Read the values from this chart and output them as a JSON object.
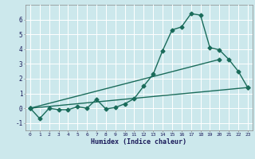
{
  "xlabel": "Humidex (Indice chaleur)",
  "ylabel": "",
  "bg_color": "#cce8ec",
  "grid_color": "#ffffff",
  "line_color": "#1a6b5a",
  "xlim": [
    -0.5,
    23.5
  ],
  "ylim": [
    -1.5,
    7.0
  ],
  "yticks": [
    -1,
    0,
    1,
    2,
    3,
    4,
    5,
    6
  ],
  "xticks": [
    0,
    1,
    2,
    3,
    4,
    5,
    6,
    7,
    8,
    9,
    10,
    11,
    12,
    13,
    14,
    15,
    16,
    17,
    18,
    19,
    20,
    21,
    22,
    23
  ],
  "line1_x": [
    0,
    1,
    2,
    3,
    4,
    5,
    6,
    7,
    8,
    9,
    10,
    11,
    12,
    13,
    14,
    15,
    16,
    17,
    18,
    19,
    20,
    21,
    22,
    23
  ],
  "line1_y": [
    0.0,
    -0.7,
    0.0,
    -0.1,
    -0.1,
    0.1,
    0.0,
    0.6,
    -0.05,
    0.05,
    0.3,
    0.65,
    1.5,
    2.3,
    3.9,
    5.3,
    5.5,
    6.4,
    6.3,
    4.1,
    3.95,
    3.3,
    2.5,
    1.4
  ],
  "line2_x": [
    0,
    20
  ],
  "line2_y": [
    0.0,
    3.3
  ],
  "line3_x": [
    0,
    23
  ],
  "line3_y": [
    0.0,
    1.4
  ],
  "marker": "D",
  "marker_size": 2.5,
  "line_width": 1.0
}
